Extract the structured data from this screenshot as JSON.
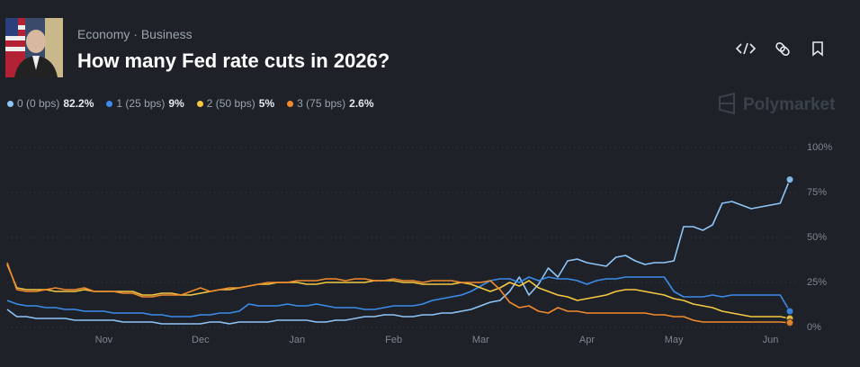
{
  "header": {
    "breadcrumbs": [
      "Economy",
      "Business"
    ],
    "title": "How many Fed rate cuts in 2026?"
  },
  "chart_data": {
    "type": "line",
    "watermark": "Polymarket",
    "categories": [
      null,
      null,
      null,
      null,
      null,
      null,
      null,
      null,
      null,
      null,
      "Nov",
      null,
      null,
      null,
      null,
      null,
      null,
      null,
      null,
      null,
      "Dec",
      null,
      null,
      null,
      null,
      null,
      null,
      null,
      null,
      null,
      "Jan",
      null,
      null,
      null,
      null,
      null,
      null,
      null,
      null,
      null,
      "Feb",
      null,
      null,
      null,
      null,
      null,
      null,
      null,
      null,
      "Mar",
      null,
      null,
      null,
      null,
      null,
      null,
      null,
      null,
      null,
      null,
      "Apr",
      null,
      null,
      null,
      null,
      null,
      null,
      null,
      null,
      "May",
      null,
      null,
      null,
      null,
      null,
      null,
      null,
      null,
      null,
      "Jun",
      null,
      null
    ],
    "series": [
      {
        "name": "0 (0 bps)",
        "current_label": "82.2%",
        "color": "#8ec5f7",
        "values": [
          10,
          6,
          6,
          5,
          5,
          5,
          5,
          4,
          4,
          4,
          4,
          4,
          3,
          3,
          3,
          3,
          2,
          2,
          2,
          2,
          2,
          3,
          3,
          2,
          3,
          3,
          3,
          3,
          4,
          4,
          4,
          4,
          3,
          3,
          4,
          4,
          5,
          6,
          6,
          7,
          7,
          6,
          6,
          7,
          7,
          8,
          8,
          9,
          10,
          12,
          14,
          15,
          20,
          28,
          18,
          24,
          33,
          28,
          37,
          38,
          36,
          35,
          34,
          39,
          40,
          37,
          35,
          36,
          36,
          37,
          56,
          56,
          54,
          57,
          69,
          70,
          68,
          66,
          67,
          68,
          69,
          82.2
        ]
      },
      {
        "name": "1 (25 bps)",
        "current_label": "9%",
        "color": "#3b8beb",
        "values": [
          15,
          13,
          12,
          12,
          11,
          11,
          10,
          10,
          9,
          9,
          9,
          8,
          8,
          8,
          8,
          7,
          7,
          6,
          6,
          6,
          7,
          7,
          8,
          8,
          9,
          13,
          12,
          12,
          12,
          13,
          12,
          12,
          13,
          12,
          11,
          11,
          11,
          10,
          10,
          11,
          12,
          12,
          12,
          13,
          15,
          16,
          17,
          18,
          20,
          23,
          26,
          27,
          27,
          25,
          28,
          26,
          28,
          27,
          27,
          26,
          24,
          26,
          27,
          27,
          28,
          28,
          28,
          28,
          28,
          20,
          17,
          17,
          17,
          18,
          17,
          18,
          18,
          18,
          18,
          18,
          18,
          9
        ]
      },
      {
        "name": "2 (50 bps)",
        "current_label": "5%",
        "color": "#f5c842",
        "values": [
          35,
          22,
          21,
          21,
          21,
          20,
          20,
          20,
          21,
          20,
          20,
          20,
          20,
          20,
          18,
          18,
          19,
          19,
          18,
          18,
          19,
          20,
          21,
          21,
          22,
          23,
          24,
          24,
          25,
          25,
          25,
          24,
          24,
          25,
          25,
          25,
          25,
          25,
          26,
          26,
          26,
          25,
          25,
          24,
          24,
          24,
          24,
          25,
          24,
          22,
          20,
          22,
          25,
          23,
          26,
          22,
          20,
          18,
          17,
          15,
          16,
          17,
          18,
          20,
          21,
          21,
          20,
          19,
          18,
          16,
          15,
          13,
          12,
          11,
          9,
          8,
          7,
          6,
          6,
          6,
          6,
          5
        ]
      },
      {
        "name": "3 (75 bps)",
        "current_label": "2.6%",
        "color": "#f08a2c",
        "values": [
          36,
          21,
          20,
          20,
          21,
          22,
          21,
          21,
          22,
          20,
          20,
          20,
          19,
          19,
          17,
          17,
          18,
          18,
          18,
          20,
          22,
          20,
          21,
          22,
          22,
          23,
          24,
          25,
          25,
          25,
          26,
          26,
          26,
          27,
          27,
          26,
          27,
          27,
          26,
          26,
          27,
          26,
          26,
          25,
          26,
          26,
          26,
          25,
          25,
          25,
          26,
          21,
          14,
          11,
          12,
          9,
          8,
          11,
          9,
          9,
          8,
          8,
          8,
          8,
          8,
          8,
          8,
          7,
          7,
          6,
          6,
          4,
          3,
          3,
          3,
          3,
          3,
          3,
          3,
          3,
          3,
          2.6
        ]
      }
    ],
    "ylim": [
      0,
      100
    ],
    "yticks": [
      {
        "value": 0,
        "label": "0%"
      },
      {
        "value": 25,
        "label": "25%"
      },
      {
        "value": 50,
        "label": "50%"
      },
      {
        "value": 75,
        "label": "75%"
      },
      {
        "value": 100,
        "label": "100%"
      }
    ],
    "grid": true
  }
}
